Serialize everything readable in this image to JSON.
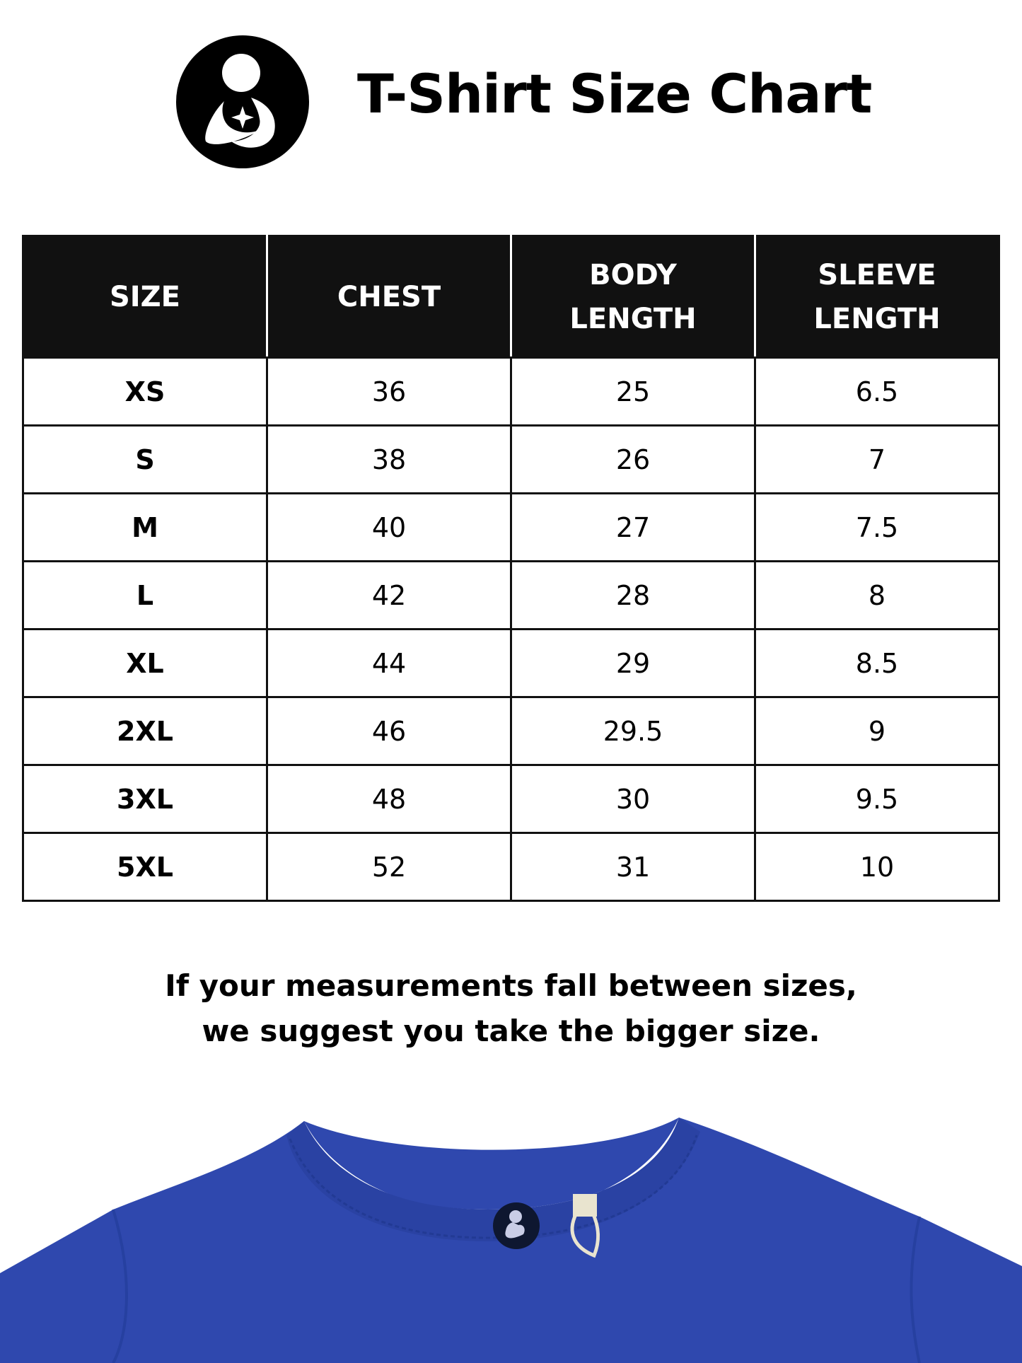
{
  "header": {
    "title": "T-Shirt Size Chart",
    "logo_icon": "mother-child-logo-icon"
  },
  "table": {
    "columns": [
      [
        "SIZE"
      ],
      [
        "CHEST"
      ],
      [
        "BODY",
        "LENGTH"
      ],
      [
        "SLEEVE",
        "LENGTH"
      ]
    ],
    "rows": [
      [
        "XS",
        "36",
        "25",
        "6.5"
      ],
      [
        "S",
        "38",
        "26",
        "7"
      ],
      [
        "M",
        "40",
        "27",
        "7.5"
      ],
      [
        "L",
        "42",
        "28",
        "8"
      ],
      [
        "XL",
        "44",
        "29",
        "8.5"
      ],
      [
        "2XL",
        "46",
        "29.5",
        "9"
      ],
      [
        "3XL",
        "48",
        "30",
        "9.5"
      ],
      [
        "5XL",
        "52",
        "31",
        "10"
      ]
    ]
  },
  "note": {
    "line1": "If your measurements fall between sizes,",
    "line2": "we suggest you take the bigger size."
  },
  "colors": {
    "header_bg": "#111111",
    "shirt": "#2f48ae"
  }
}
